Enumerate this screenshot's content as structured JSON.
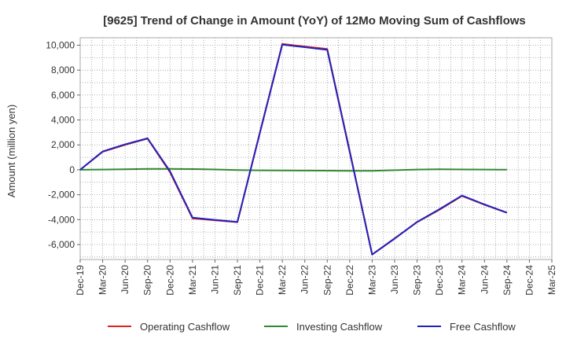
{
  "chart_data": {
    "type": "line",
    "title": "[9625]  Trend of Change in Amount (YoY) of 12Mo Moving Sum of Cashflows",
    "xlabel": "",
    "ylabel": "Amount (million yen)",
    "categories": [
      "Dec-19",
      "Mar-20",
      "Jun-20",
      "Sep-20",
      "Dec-20",
      "Mar-21",
      "Jun-21",
      "Sep-21",
      "Dec-21",
      "Mar-22",
      "Jun-22",
      "Sep-22",
      "Dec-22",
      "Mar-23",
      "Jun-23",
      "Sep-23",
      "Dec-23",
      "Mar-24",
      "Jun-24",
      "Sep-24",
      "Dec-24",
      "Mar-25"
    ],
    "ylim": [
      -7200,
      10600
    ],
    "yticks": [
      -6000,
      -4000,
      -2000,
      0,
      2000,
      4000,
      6000,
      8000,
      10000
    ],
    "ytick_labels": [
      "-6,000",
      "-4,000",
      "-2,000",
      "0",
      "2,000",
      "4,000",
      "6,000",
      "8,000",
      "10,000"
    ],
    "grid": true,
    "legend_position": "bottom",
    "series": [
      {
        "name": "Operating Cashflow",
        "color": "#dd2222",
        "values": [
          0,
          1450,
          2000,
          2500,
          -200,
          -3900,
          -4050,
          -4200,
          3000,
          10100,
          9900,
          9700,
          1500,
          -6800,
          -5500,
          -4200,
          -3200,
          -2100,
          -2800,
          -3450,
          null,
          null
        ]
      },
      {
        "name": "Investing Cashflow",
        "color": "#338833",
        "values": [
          0,
          20,
          40,
          70,
          80,
          60,
          30,
          -20,
          -40,
          -50,
          -60,
          -70,
          -80,
          -80,
          -30,
          20,
          40,
          30,
          20,
          10,
          null,
          null
        ]
      },
      {
        "name": "Free Cashflow",
        "color": "#2222bb",
        "values": [
          0,
          1470,
          2040,
          2530,
          -120,
          -3840,
          -4020,
          -4180,
          2960,
          10050,
          9840,
          9630,
          1420,
          -6800,
          -5530,
          -4180,
          -3160,
          -2070,
          -2780,
          -3440,
          null,
          null
        ]
      }
    ]
  }
}
